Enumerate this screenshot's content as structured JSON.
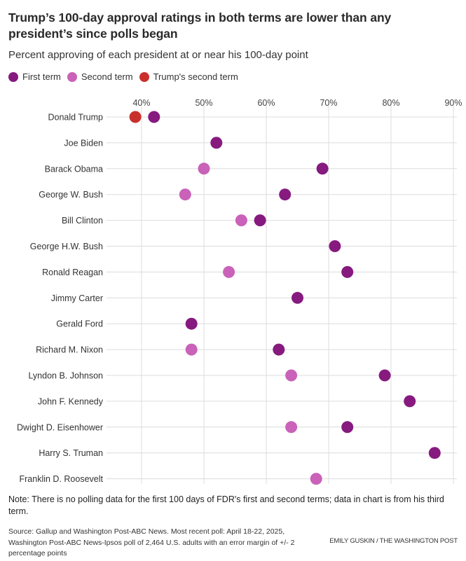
{
  "chart_data": {
    "type": "scatter",
    "subtype": "dot-plot",
    "title": "Trump’s 100-day approval ratings in both terms are lower than any president’s since polls began",
    "subtitle": "Percent approving of each president at or near his 100-day point",
    "xlabel": "",
    "ylabel": "",
    "xlim": [
      38,
      92
    ],
    "x_ticks": [
      40,
      50,
      60,
      70,
      80,
      90
    ],
    "x_tick_labels": [
      "40%",
      "50%",
      "60%",
      "70%",
      "80%",
      "90%"
    ],
    "grid": true,
    "legend_position": "top-left",
    "legend": [
      {
        "key": "first",
        "label": "First term",
        "color": "#861a7f"
      },
      {
        "key": "second",
        "label": "Second term",
        "color": "#c962b8"
      },
      {
        "key": "trump_second",
        "label": "Trump's second term",
        "color": "#c9302c"
      }
    ],
    "categories": [
      "Donald Trump",
      "Joe Biden",
      "Barack Obama",
      "George W. Bush",
      "Bill Clinton",
      "George H.W. Bush",
      "Ronald Reagan",
      "Jimmy Carter",
      "Gerald Ford",
      "Richard M. Nixon",
      "Lyndon B. Johnson",
      "John F. Kennedy",
      "Dwight D. Eisenhower",
      "Harry S. Truman",
      "Franklin D. Roosevelt"
    ],
    "series": [
      {
        "name": "First term",
        "key": "first",
        "values": [
          42,
          52,
          69,
          63,
          59,
          71,
          73,
          65,
          48,
          62,
          79,
          83,
          73,
          87,
          null
        ]
      },
      {
        "name": "Second term",
        "key": "second",
        "values": [
          null,
          null,
          50,
          47,
          56,
          null,
          54,
          null,
          null,
          48,
          64,
          null,
          64,
          null,
          68
        ]
      },
      {
        "name": "Trump's second term",
        "key": "trump_second",
        "values": [
          39,
          null,
          null,
          null,
          null,
          null,
          null,
          null,
          null,
          null,
          null,
          null,
          null,
          null,
          null
        ]
      }
    ]
  },
  "note": "Note: There is no polling data for the first 100 days of FDR's first and second terms; data in chart is from his third term.",
  "source": "Source: Gallup and Washington Post-ABC News. Most recent poll: April 18-22, 2025, Washington Post-ABC News-Ipsos poll of 2,464 U.S. adults with an error margin of +/- 2 percentage points",
  "credit": "EMILY GUSKIN / THE WASHINGTON POST"
}
